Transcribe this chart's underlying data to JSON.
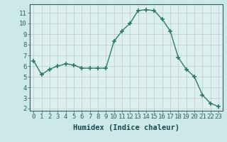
{
  "x": [
    0,
    1,
    2,
    3,
    4,
    5,
    6,
    7,
    8,
    9,
    10,
    11,
    12,
    13,
    14,
    15,
    16,
    17,
    18,
    19,
    20,
    21,
    22,
    23
  ],
  "y": [
    6.5,
    5.2,
    5.7,
    6.0,
    6.2,
    6.1,
    5.8,
    5.8,
    5.8,
    5.8,
    8.3,
    9.3,
    10.0,
    11.2,
    11.3,
    11.2,
    10.4,
    9.3,
    6.8,
    5.7,
    5.0,
    3.3,
    2.5,
    2.2
  ],
  "line_color": "#2d7a6a",
  "marker": "+",
  "marker_size": 5,
  "bg_color": "#cce8e8",
  "plot_bg_color": "#ddf0f0",
  "grid_color": "#c0c8c8",
  "xlabel": "Humidex (Indice chaleur)",
  "ylim_min": 1.8,
  "ylim_max": 11.8,
  "xlim_min": -0.5,
  "xlim_max": 23.5,
  "yticks": [
    2,
    3,
    4,
    5,
    6,
    7,
    8,
    9,
    10,
    11
  ],
  "xticks": [
    0,
    1,
    2,
    3,
    4,
    5,
    6,
    7,
    8,
    9,
    10,
    11,
    12,
    13,
    14,
    15,
    16,
    17,
    18,
    19,
    20,
    21,
    22,
    23
  ],
  "tick_label_fontsize": 6.5,
  "xlabel_fontsize": 7.5,
  "tick_color": "#2d6060",
  "label_color": "#1a4a4a"
}
